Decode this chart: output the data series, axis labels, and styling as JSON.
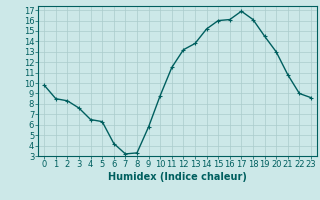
{
  "x": [
    0,
    1,
    2,
    3,
    4,
    5,
    6,
    7,
    8,
    9,
    10,
    11,
    12,
    13,
    14,
    15,
    16,
    17,
    18,
    19,
    20,
    21,
    22,
    23
  ],
  "y": [
    9.8,
    8.5,
    8.3,
    7.6,
    6.5,
    6.3,
    4.2,
    3.2,
    3.3,
    5.8,
    8.8,
    11.5,
    13.2,
    13.8,
    15.2,
    16.0,
    16.1,
    16.9,
    16.1,
    14.5,
    13.0,
    10.8,
    9.0,
    8.6
  ],
  "line_color": "#005f5f",
  "marker": "+",
  "marker_size": 3,
  "bg_color": "#cce8e8",
  "grid_color": "#aacccc",
  "xlabel": "Humidex (Indice chaleur)",
  "xlim": [
    -0.5,
    23.5
  ],
  "ylim": [
    3,
    17.4
  ],
  "yticks": [
    3,
    4,
    5,
    6,
    7,
    8,
    9,
    10,
    11,
    12,
    13,
    14,
    15,
    16,
    17
  ],
  "xticks": [
    0,
    1,
    2,
    3,
    4,
    5,
    6,
    7,
    8,
    9,
    10,
    11,
    12,
    13,
    14,
    15,
    16,
    17,
    18,
    19,
    20,
    21,
    22,
    23
  ],
  "tick_color": "#005f5f",
  "label_color": "#005f5f",
  "spine_color": "#005f5f",
  "linewidth": 1.0,
  "xlabel_fontsize": 7,
  "tick_fontsize": 6
}
